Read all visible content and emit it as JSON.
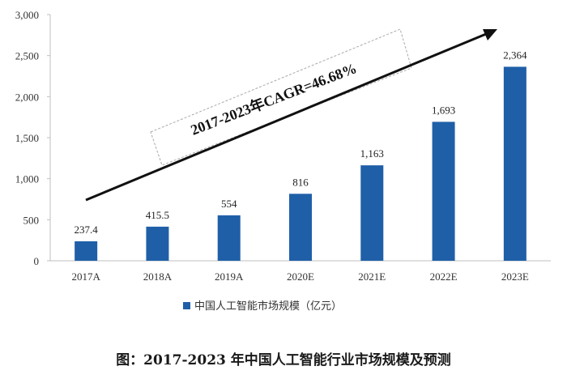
{
  "chart_data": {
    "type": "bar",
    "categories": [
      "2017A",
      "2018A",
      "2019A",
      "2020E",
      "2021E",
      "2022E",
      "2023E"
    ],
    "values": [
      237.4,
      415.5,
      554,
      816,
      1163,
      1693,
      2364
    ],
    "value_labels": [
      "237.4",
      "415.5",
      "554",
      "816",
      "1,163",
      "1,693",
      "2,364"
    ],
    "yticks": [
      0,
      500,
      1000,
      1500,
      2000,
      2500,
      3000
    ],
    "ytick_labels": [
      "0",
      "500",
      "1,000",
      "1,500",
      "2,000",
      "2,500",
      "3,000"
    ],
    "ylim": [
      0,
      3000
    ],
    "legend": "中国人工智能市场规模（亿元）",
    "legend_position": "bottom",
    "annotation": "2017-2023年CAGR=46.68%",
    "caption": "图：2017-2023 年中国人工智能行业市场规模及预测",
    "bar_color": "#1f5fa8"
  }
}
